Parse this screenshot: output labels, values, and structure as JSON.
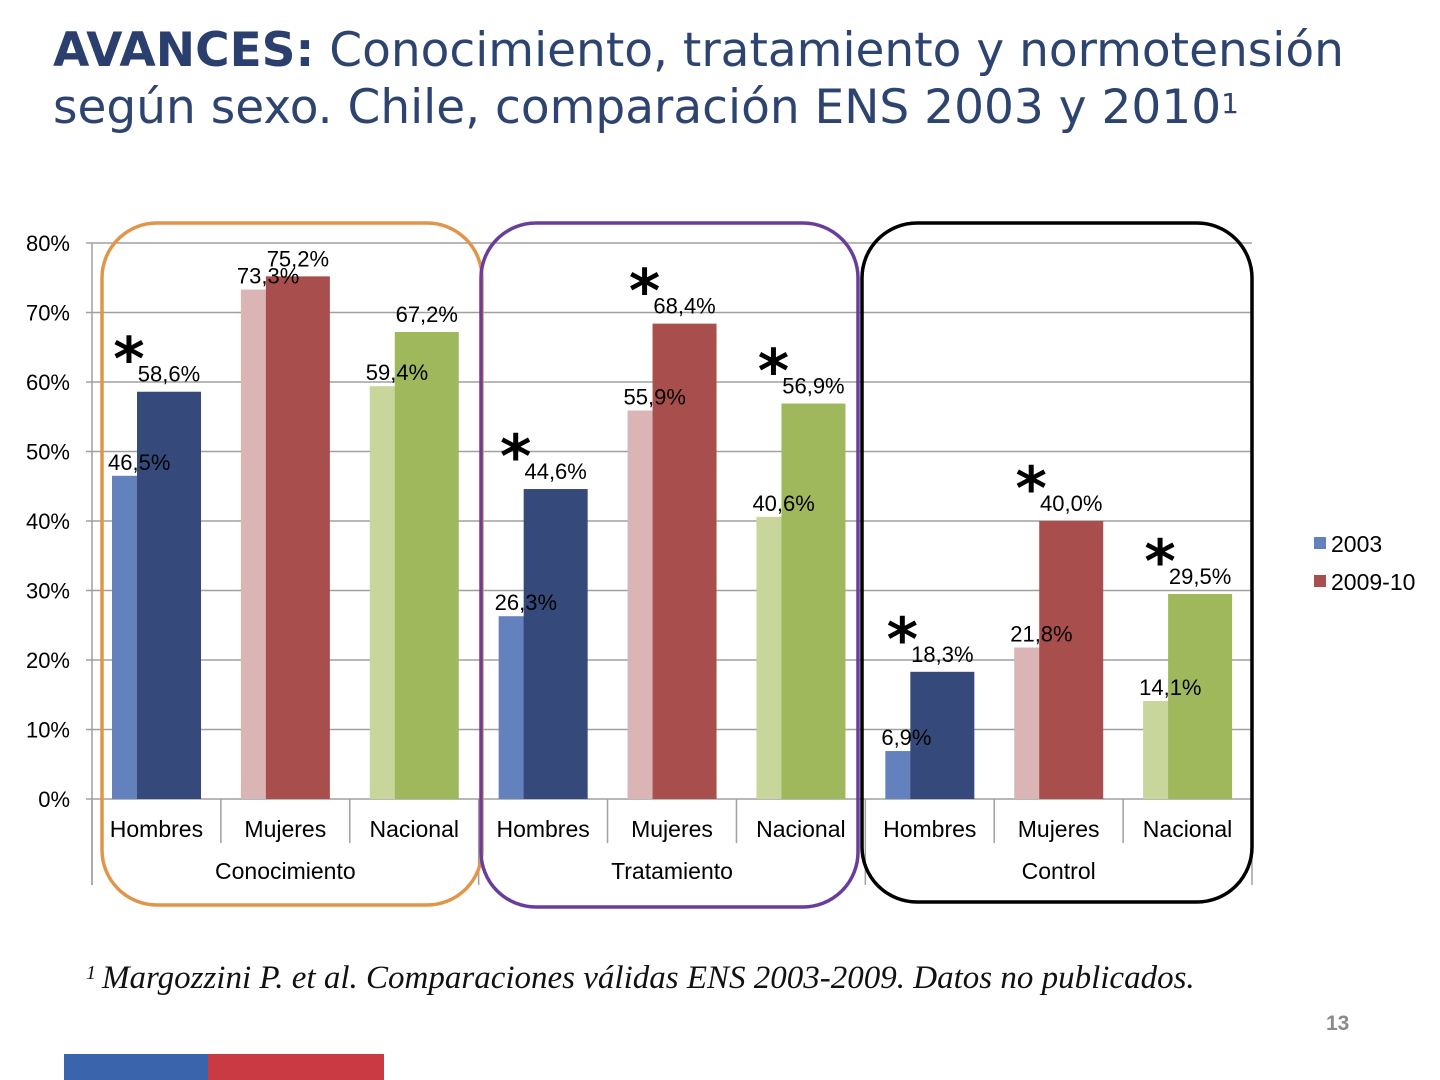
{
  "slide": {
    "title_bold": "AVANCES:",
    "title_rest": " Conocimiento, tratamiento y normotensión según sexo.  Chile, comparación ENS 2003 y 2010",
    "title_sup": "1",
    "footnote_sup": "1",
    "footnote": "Margozzini P. et al. Comparaciones válidas ENS 2003-2009. Datos no publicados.",
    "page_number": "13"
  },
  "chart_data": {
    "type": "bar",
    "ylim": [
      0,
      80
    ],
    "yticks": [
      "0%",
      "10%",
      "20%",
      "30%",
      "40%",
      "50%",
      "60%",
      "70%",
      "80%"
    ],
    "grid": true,
    "legend_placement": "right",
    "groups": [
      {
        "label": "Conocimiento",
        "box_color": "#e0964a"
      },
      {
        "label": "Tratamiento",
        "box_color": "#6a3d9a"
      },
      {
        "label": "Control",
        "box_color": "#000000"
      }
    ],
    "categories": [
      {
        "group": 0,
        "label": "Hombres",
        "v2003": 46.5,
        "l2003": "46,5%",
        "v2010": 58.6,
        "l2010": "58,6%",
        "significant": true,
        "colors": [
          "#6381bd",
          "#354a7a"
        ]
      },
      {
        "group": 0,
        "label": "Mujeres",
        "v2003": 73.3,
        "l2003": "73,3%",
        "v2010": 75.2,
        "l2010": "75,2%",
        "significant": false,
        "colors": [
          "#dbb5b5",
          "#a84f4d"
        ]
      },
      {
        "group": 0,
        "label": "Nacional",
        "v2003": 59.4,
        "l2003": "59,4%",
        "v2010": 67.2,
        "l2010": "67,2%",
        "significant": false,
        "colors": [
          "#c8d69c",
          "#a0b85c"
        ]
      },
      {
        "group": 1,
        "label": "Hombres",
        "v2003": 26.3,
        "l2003": "26,3%",
        "v2010": 44.6,
        "l2010": "44,6%",
        "significant": true,
        "colors": [
          "#6381bd",
          "#354a7a"
        ]
      },
      {
        "group": 1,
        "label": "Mujeres",
        "v2003": 55.9,
        "l2003": "55,9%",
        "v2010": 68.4,
        "l2010": "68,4%",
        "significant": true,
        "colors": [
          "#dbb5b5",
          "#a84f4d"
        ]
      },
      {
        "group": 1,
        "label": "Nacional",
        "v2003": 40.6,
        "l2003": "40,6%",
        "v2010": 56.9,
        "l2010": "56,9%",
        "significant": true,
        "colors": [
          "#c8d69c",
          "#a0b85c"
        ]
      },
      {
        "group": 2,
        "label": "Hombres",
        "v2003": 6.9,
        "l2003": "6,9%",
        "v2010": 18.3,
        "l2010": "18,3%",
        "significant": true,
        "colors": [
          "#6381bd",
          "#354a7a"
        ]
      },
      {
        "group": 2,
        "label": "Mujeres",
        "v2003": 21.8,
        "l2003": "21,8%",
        "v2010": 40.0,
        "l2010": "40,0%",
        "significant": true,
        "colors": [
          "#dbb5b5",
          "#a84f4d"
        ]
      },
      {
        "group": 2,
        "label": "Nacional",
        "v2003": 14.1,
        "l2003": "14,1%",
        "v2010": 29.5,
        "l2010": "29,5%",
        "significant": true,
        "colors": [
          "#c8d69c",
          "#a0b85c"
        ]
      }
    ],
    "significance_marker": "*",
    "legend": [
      {
        "name": "2003",
        "color": "#6381bd"
      },
      {
        "name": "2009-10",
        "color": "#a84f4d"
      }
    ]
  }
}
